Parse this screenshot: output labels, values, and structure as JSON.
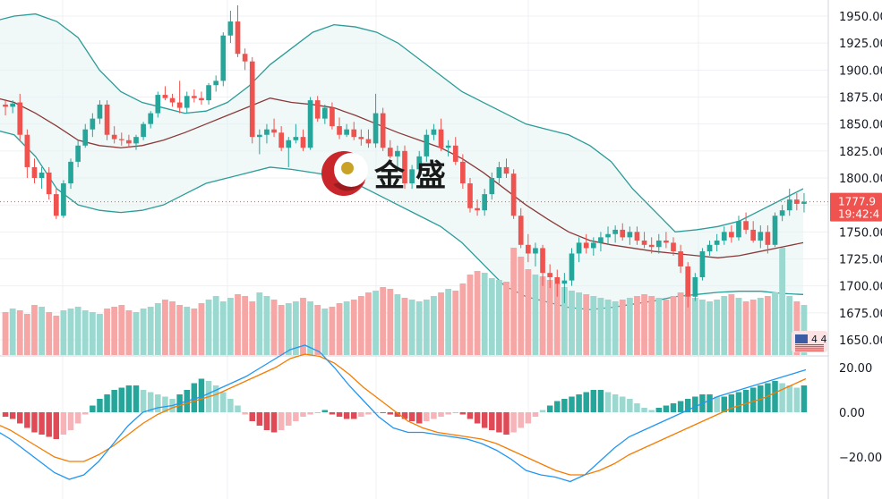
{
  "watermark": {
    "text": "金 盛"
  },
  "price_label": {
    "price": "1777.9",
    "time": "19:42:4"
  },
  "volume_badge": "4 4",
  "chart_data": [
    {
      "type": "candlestick",
      "panel": "price",
      "y_ticks": [
        "1950.00",
        "1925.00",
        "1900.00",
        "1875.00",
        "1850.00",
        "1825.00",
        "1800.00",
        "1775.00",
        "1750.00",
        "1725.00",
        "1700.00",
        "1675.00",
        "1650.00"
      ],
      "ylim": [
        1650,
        1950
      ],
      "last_price": 1777.9,
      "ohlc": [
        [
          1868,
          1873,
          1858,
          1866
        ],
        [
          1866,
          1872,
          1860,
          1869
        ],
        [
          1870,
          1878,
          1835,
          1840
        ],
        [
          1840,
          1845,
          1800,
          1810
        ],
        [
          1810,
          1818,
          1795,
          1800
        ],
        [
          1800,
          1810,
          1790,
          1805
        ],
        [
          1805,
          1810,
          1780,
          1785
        ],
        [
          1785,
          1790,
          1762,
          1765
        ],
        [
          1765,
          1798,
          1763,
          1795
        ],
        [
          1795,
          1818,
          1790,
          1815
        ],
        [
          1815,
          1835,
          1810,
          1830
        ],
        [
          1830,
          1850,
          1828,
          1845
        ],
        [
          1845,
          1860,
          1838,
          1855
        ],
        [
          1855,
          1872,
          1850,
          1868
        ],
        [
          1868,
          1872,
          1835,
          1840
        ],
        [
          1840,
          1848,
          1832,
          1836
        ],
        [
          1836,
          1842,
          1830,
          1835
        ],
        [
          1835,
          1840,
          1828,
          1832
        ],
        [
          1832,
          1840,
          1826,
          1838
        ],
        [
          1838,
          1852,
          1835,
          1850
        ],
        [
          1850,
          1862,
          1846,
          1860
        ],
        [
          1860,
          1880,
          1856,
          1877
        ],
        [
          1877,
          1885,
          1872,
          1874
        ],
        [
          1874,
          1878,
          1866,
          1870
        ],
        [
          1870,
          1890,
          1860,
          1865
        ],
        [
          1865,
          1880,
          1860,
          1876
        ],
        [
          1876,
          1882,
          1870,
          1874
        ],
        [
          1874,
          1880,
          1868,
          1872
        ],
        [
          1872,
          1888,
          1868,
          1886
        ],
        [
          1886,
          1895,
          1880,
          1890
        ],
        [
          1890,
          1935,
          1885,
          1932
        ],
        [
          1932,
          1955,
          1925,
          1945
        ],
        [
          1945,
          1960,
          1912,
          1915
        ],
        [
          1915,
          1920,
          1900,
          1908
        ],
        [
          1908,
          1912,
          1832,
          1838
        ],
        [
          1838,
          1845,
          1822,
          1840
        ],
        [
          1840,
          1850,
          1832,
          1845
        ],
        [
          1845,
          1855,
          1838,
          1842
        ],
        [
          1842,
          1848,
          1825,
          1828
        ],
        [
          1828,
          1838,
          1810,
          1835
        ],
        [
          1835,
          1850,
          1832,
          1838
        ],
        [
          1838,
          1845,
          1825,
          1828
        ],
        [
          1828,
          1875,
          1826,
          1872
        ],
        [
          1872,
          1876,
          1852,
          1855
        ],
        [
          1855,
          1868,
          1850,
          1865
        ],
        [
          1865,
          1870,
          1845,
          1848
        ],
        [
          1848,
          1856,
          1836,
          1840
        ],
        [
          1840,
          1850,
          1838,
          1845
        ],
        [
          1845,
          1852,
          1835,
          1838
        ],
        [
          1838,
          1845,
          1830,
          1836
        ],
        [
          1836,
          1845,
          1828,
          1832
        ],
        [
          1832,
          1878,
          1828,
          1860
        ],
        [
          1860,
          1865,
          1825,
          1828
        ],
        [
          1828,
          1835,
          1818,
          1820
        ],
        [
          1820,
          1830,
          1810,
          1825
        ],
        [
          1825,
          1830,
          1790,
          1795
        ],
        [
          1795,
          1812,
          1790,
          1808
        ],
        [
          1808,
          1825,
          1802,
          1820
        ],
        [
          1820,
          1845,
          1815,
          1840
        ],
        [
          1840,
          1850,
          1835,
          1845
        ],
        [
          1845,
          1855,
          1825,
          1828
        ],
        [
          1828,
          1835,
          1820,
          1830
        ],
        [
          1830,
          1838,
          1812,
          1815
        ],
        [
          1815,
          1822,
          1790,
          1795
        ],
        [
          1795,
          1800,
          1768,
          1772
        ],
        [
          1772,
          1780,
          1765,
          1770
        ],
        [
          1770,
          1790,
          1765,
          1785
        ],
        [
          1785,
          1805,
          1780,
          1800
        ],
        [
          1800,
          1815,
          1795,
          1810
        ],
        [
          1810,
          1818,
          1800,
          1804
        ],
        [
          1804,
          1808,
          1762,
          1765
        ],
        [
          1765,
          1772,
          1735,
          1738
        ],
        [
          1738,
          1748,
          1722,
          1730
        ],
        [
          1730,
          1740,
          1718,
          1735
        ],
        [
          1735,
          1738,
          1700,
          1712
        ],
        [
          1712,
          1720,
          1698,
          1708
        ],
        [
          1708,
          1715,
          1690,
          1702
        ],
        [
          1702,
          1712,
          1684,
          1705
        ],
        [
          1705,
          1735,
          1700,
          1730
        ],
        [
          1730,
          1745,
          1722,
          1740
        ],
        [
          1740,
          1748,
          1730,
          1735
        ],
        [
          1735,
          1745,
          1728,
          1740
        ],
        [
          1740,
          1750,
          1732,
          1745
        ],
        [
          1745,
          1755,
          1738,
          1748
        ],
        [
          1748,
          1756,
          1740,
          1752
        ],
        [
          1752,
          1758,
          1742,
          1745
        ],
        [
          1745,
          1755,
          1738,
          1750
        ],
        [
          1750,
          1755,
          1738,
          1742
        ],
        [
          1742,
          1750,
          1735,
          1738
        ],
        [
          1738,
          1745,
          1730,
          1736
        ],
        [
          1736,
          1748,
          1730,
          1742
        ],
        [
          1742,
          1750,
          1735,
          1740
        ],
        [
          1740,
          1745,
          1728,
          1732
        ],
        [
          1732,
          1738,
          1712,
          1718
        ],
        [
          1718,
          1722,
          1680,
          1690
        ],
        [
          1690,
          1712,
          1686,
          1708
        ],
        [
          1708,
          1735,
          1705,
          1732
        ],
        [
          1732,
          1742,
          1728,
          1738
        ],
        [
          1738,
          1748,
          1732,
          1742
        ],
        [
          1742,
          1755,
          1738,
          1750
        ],
        [
          1750,
          1756,
          1740,
          1745
        ],
        [
          1745,
          1765,
          1742,
          1760
        ],
        [
          1760,
          1768,
          1748,
          1752
        ],
        [
          1752,
          1760,
          1740,
          1742
        ],
        [
          1742,
          1756,
          1735,
          1750
        ],
        [
          1750,
          1756,
          1730,
          1738
        ],
        [
          1738,
          1768,
          1736,
          1765
        ],
        [
          1765,
          1775,
          1760,
          1770
        ],
        [
          1770,
          1790,
          1765,
          1780
        ],
        [
          1780,
          1786,
          1770,
          1776
        ],
        [
          1776,
          1786,
          1768,
          1778
        ]
      ],
      "bollinger": {
        "upper": [
          1945,
          1950,
          1952,
          1945,
          1930,
          1900,
          1880,
          1870,
          1865,
          1860,
          1862,
          1870,
          1885,
          1905,
          1920,
          1935,
          1942,
          1940,
          1935,
          1925,
          1910,
          1895,
          1880,
          1870,
          1860,
          1850,
          1845,
          1840,
          1830,
          1815,
          1790,
          1770,
          1750,
          1752,
          1755,
          1760,
          1770,
          1780,
          1790
        ],
        "middle": [
          1875,
          1870,
          1860,
          1848,
          1835,
          1830,
          1828,
          1830,
          1835,
          1842,
          1850,
          1858,
          1866,
          1874,
          1870,
          1868,
          1865,
          1858,
          1850,
          1842,
          1835,
          1828,
          1818,
          1805,
          1790,
          1775,
          1762,
          1750,
          1742,
          1738,
          1735,
          1732,
          1730,
          1728,
          1726,
          1728,
          1732,
          1736,
          1740
        ],
        "lower": [
          1845,
          1840,
          1820,
          1790,
          1775,
          1770,
          1768,
          1770,
          1775,
          1785,
          1795,
          1800,
          1805,
          1810,
          1808,
          1805,
          1802,
          1795,
          1785,
          1775,
          1765,
          1755,
          1740,
          1720,
          1700,
          1690,
          1685,
          1680,
          1678,
          1680,
          1683,
          1686,
          1690,
          1692,
          1694,
          1695,
          1695,
          1693,
          1692
        ]
      }
    },
    {
      "type": "bar",
      "panel": "volume",
      "values": [
        24,
        26,
        25,
        23,
        28,
        27,
        24,
        22,
        25,
        26,
        27,
        25,
        24,
        23,
        26,
        27,
        28,
        25,
        24,
        26,
        27,
        29,
        31,
        30,
        28,
        27,
        26,
        29,
        31,
        33,
        30,
        32,
        34,
        33,
        30,
        35,
        33,
        31,
        28,
        29,
        30,
        32,
        30,
        28,
        26,
        27,
        29,
        30,
        31,
        33,
        35,
        36,
        38,
        37,
        34,
        32,
        31,
        30,
        31,
        33,
        35,
        37,
        36,
        40,
        45,
        47,
        46,
        43,
        42,
        41,
        60,
        55,
        48,
        45,
        44,
        42,
        40,
        38,
        36,
        35,
        34,
        33,
        32,
        31,
        30,
        31,
        32,
        33,
        34,
        33,
        32,
        31,
        33,
        35,
        34,
        32,
        31,
        30,
        31,
        33,
        34,
        32,
        30,
        31,
        32,
        33,
        35,
        60,
        33,
        30,
        28
      ]
    },
    {
      "type": "bar",
      "panel": "macd",
      "y_ticks": [
        "20.00",
        "0.00",
        "−20.00"
      ],
      "ylim": [
        -32,
        32
      ],
      "histogram": [
        -2,
        -3,
        -5,
        -7,
        -9,
        -10,
        -11,
        -12,
        -10,
        -8,
        -5,
        -1,
        3,
        6,
        8,
        10,
        11,
        12,
        12,
        10,
        9,
        8,
        7,
        6,
        8,
        10,
        13,
        15,
        14,
        12,
        9,
        6,
        3,
        -1,
        -4,
        -6,
        -8,
        -9,
        -8,
        -6,
        -4,
        -2,
        -1,
        0,
        1,
        -1,
        -2,
        -3,
        -3,
        -2,
        -1,
        0,
        0,
        -1,
        -2,
        -3,
        -4,
        -5,
        -4,
        -3,
        -2,
        -1,
        0,
        -1,
        -3,
        -5,
        -7,
        -8,
        -9,
        -10,
        -9,
        -7,
        -5,
        -2,
        1,
        3,
        5,
        6,
        7,
        8,
        9,
        10,
        10,
        9,
        8,
        7,
        6,
        4,
        2,
        1,
        2,
        3,
        4,
        5,
        6,
        7,
        8,
        8,
        7,
        7,
        8,
        9,
        10,
        11,
        12,
        13,
        14,
        13,
        12,
        11,
        12
      ],
      "macd_line": [
        -8,
        -12,
        -17,
        -22,
        -27,
        -30,
        -28,
        -22,
        -14,
        -6,
        0,
        2,
        3,
        5,
        7,
        10,
        13,
        16,
        20,
        24,
        28,
        30,
        27,
        20,
        12,
        5,
        -2,
        -7,
        -9,
        -9,
        -10,
        -11,
        -12,
        -14,
        -17,
        -21,
        -26,
        -28,
        -29,
        -31,
        -28,
        -22,
        -16,
        -11,
        -8,
        -5,
        -2,
        1,
        4,
        7,
        9,
        11,
        13,
        15,
        17,
        19
      ],
      "signal_line": [
        -5,
        -8,
        -12,
        -16,
        -20,
        -22,
        -22,
        -19,
        -15,
        -10,
        -5,
        -1,
        2,
        4,
        6,
        8,
        11,
        14,
        17,
        20,
        24,
        26,
        25,
        22,
        17,
        11,
        6,
        1,
        -4,
        -7,
        -9,
        -10,
        -11,
        -12,
        -14,
        -17,
        -20,
        -23,
        -26,
        -28,
        -28,
        -26,
        -23,
        -19,
        -16,
        -13,
        -10,
        -7,
        -4,
        -1,
        2,
        4,
        6,
        9,
        12,
        15
      ]
    }
  ]
}
